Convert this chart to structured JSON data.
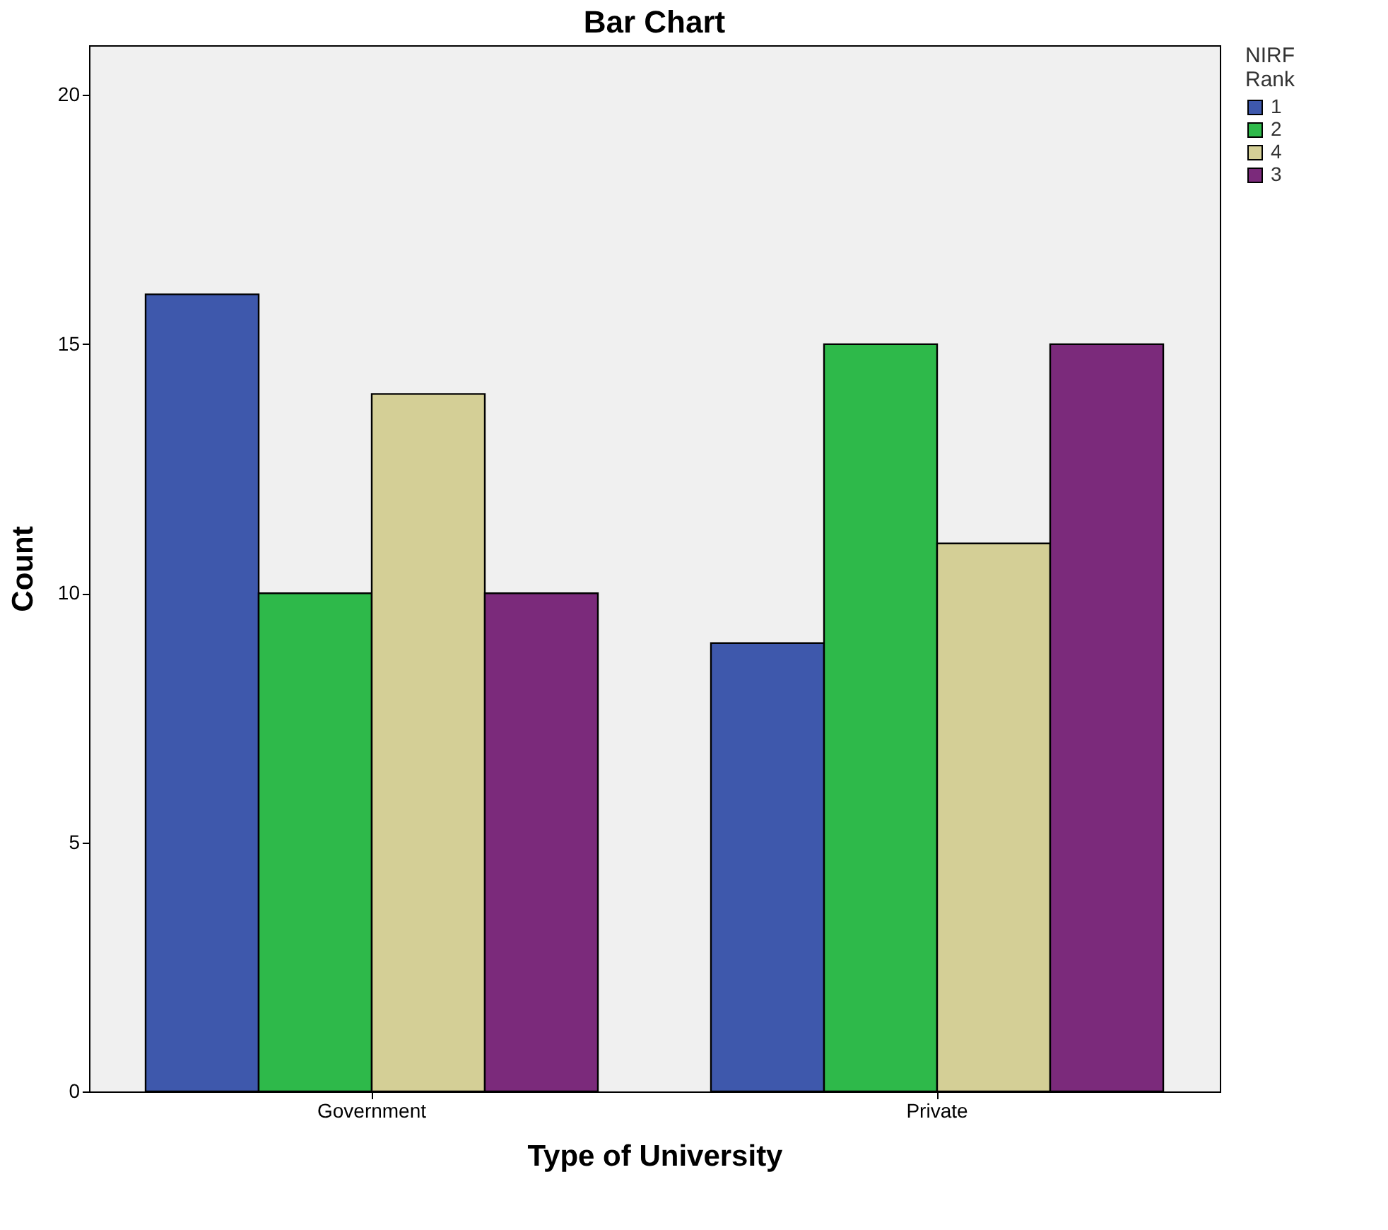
{
  "chart_data": {
    "type": "bar",
    "title": "Bar Chart",
    "xlabel": "Type of University",
    "ylabel": "Count",
    "legend_title": "NIRF Rank",
    "categories": [
      "Government",
      "Private"
    ],
    "series": [
      {
        "name": "1",
        "color": "#3e58ac",
        "values": [
          16,
          9
        ]
      },
      {
        "name": "2",
        "color": "#2eb94a",
        "values": [
          10,
          15
        ]
      },
      {
        "name": "4",
        "color": "#d4cf96",
        "values": [
          14,
          11
        ]
      },
      {
        "name": "3",
        "color": "#7b2a7b",
        "values": [
          10,
          15
        ]
      }
    ],
    "ylim": [
      0,
      21
    ],
    "yticks": [
      0,
      5,
      10,
      15,
      20
    ],
    "grid": false,
    "legend": "top right"
  }
}
